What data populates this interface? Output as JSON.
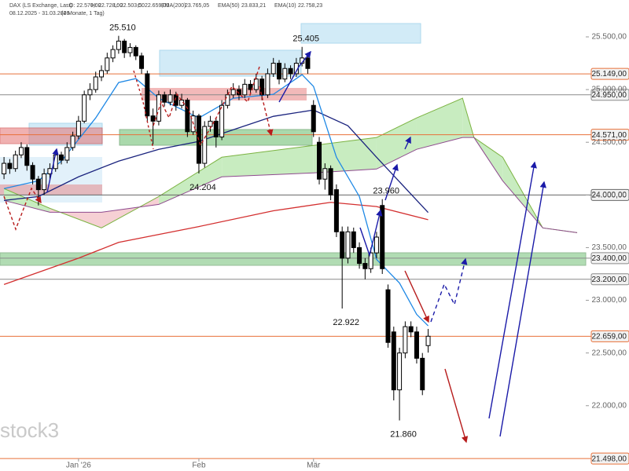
{
  "chart_data": {
    "type": "candlestick",
    "header": {
      "instrument": "DAX (LS Exchange, Last)",
      "open": "O: 22.570,00",
      "high": "H: 22.728,00",
      "low": "L: 22.503,50",
      "close": "C: 22.659,00",
      "range": "08.12.2025 - 31.03.2026",
      "span": "(4 Monate, 1 Tag)"
    },
    "watermark": "stock3",
    "xlim": [
      -0.7,
      101.5
    ],
    "ylim": [
      21380,
      25850
    ],
    "xticks": [
      {
        "value": 13,
        "label": "Jan '26"
      },
      {
        "value": 34,
        "label": "Feb"
      },
      {
        "value": 54,
        "label": "Mär"
      }
    ],
    "yticks": [
      {
        "value": 22000,
        "label": "22.000,00"
      },
      {
        "value": 22500,
        "label": "22.500,00"
      },
      {
        "value": 23000,
        "label": "23.000,00"
      },
      {
        "value": 23500,
        "label": "23.500,00"
      },
      {
        "value": 24000,
        "label": "24.000,00"
      },
      {
        "value": 24500,
        "label": "24.500,00"
      },
      {
        "value": 25000,
        "label": "25.000,00"
      },
      {
        "value": 25500,
        "label": "25.500,00"
      }
    ],
    "up_color": "#ffffff",
    "down_color": "#000000",
    "open": [
      24200,
      24300,
      24250,
      24380,
      24450,
      24280,
      24150,
      24050,
      24200,
      24250,
      24380,
      24330,
      24450,
      24560,
      24700,
      24950,
      25000,
      25120,
      25180,
      25300,
      25380,
      25460,
      25350,
      25400,
      25320,
      25150,
      24750,
      24700,
      24950,
      24880,
      24950,
      24850,
      24900,
      24600,
      24750,
      24300,
      24650,
      24700,
      24550,
      24850,
      24950,
      25000,
      24950,
      25050,
      25000,
      25100,
      24950,
      25150,
      25250,
      25100,
      25200,
      25150,
      25250,
      25300,
      24850,
      24500,
      24150,
      24250,
      24050,
      23650,
      23400,
      23650,
      23500,
      23350,
      23300,
      23450,
      23900,
      23100,
      22700,
      22150,
      22500,
      22750,
      22700,
      22450,
      22570
    ],
    "high": [
      24360,
      24340,
      24420,
      24500,
      24480,
      24310,
      24180,
      24250,
      24300,
      24420,
      24410,
      24500,
      24600,
      24750,
      24990,
      25060,
      25170,
      25230,
      25350,
      25420,
      25510,
      25480,
      25440,
      25420,
      25350,
      25180,
      24820,
      24990,
      24980,
      25000,
      24980,
      24960,
      24920,
      24800,
      24770,
      24700,
      24750,
      24730,
      24900,
      25000,
      25060,
      25040,
      25100,
      25090,
      25150,
      25130,
      25200,
      25300,
      25280,
      25250,
      25230,
      25300,
      25405,
      25330,
      24900,
      24550,
      24300,
      24280,
      24100,
      23700,
      23700,
      23690,
      23550,
      23400,
      23500,
      23650,
      23960,
      23150,
      22750,
      22550,
      22800,
      22800,
      22750,
      22500,
      22728
    ],
    "low": [
      24150,
      24200,
      24220,
      24350,
      24230,
      24100,
      23900,
      24000,
      24150,
      24220,
      24290,
      24300,
      24420,
      24530,
      24680,
      24900,
      24970,
      25080,
      25150,
      25260,
      25340,
      25300,
      25310,
      25280,
      25150,
      24700,
      24480,
      24660,
      24840,
      24850,
      24800,
      24820,
      24550,
      24570,
      24204,
      24260,
      24600,
      24450,
      24520,
      24820,
      24920,
      24900,
      24920,
      24960,
      24970,
      24900,
      24920,
      25120,
      25050,
      25070,
      25100,
      25120,
      25220,
      25150,
      24550,
      24100,
      24050,
      23950,
      23600,
      22922,
      23350,
      23450,
      23300,
      23200,
      23260,
      23400,
      23250,
      22550,
      22050,
      21860,
      22450,
      22650,
      22400,
      22100,
      22503.5
    ],
    "close": [
      24300,
      24250,
      24380,
      24450,
      24280,
      24150,
      24050,
      24200,
      24250,
      24380,
      24330,
      24450,
      24560,
      24700,
      24950,
      25000,
      25120,
      25180,
      25300,
      25380,
      25460,
      25350,
      25400,
      25320,
      25200,
      24750,
      24700,
      24950,
      24880,
      24950,
      24850,
      24900,
      24600,
      24750,
      24300,
      24650,
      24700,
      24550,
      24850,
      24950,
      25000,
      24950,
      25050,
      25000,
      25100,
      24950,
      25150,
      25250,
      25100,
      25200,
      25150,
      25250,
      25300,
      25200,
      24600,
      24150,
      24250,
      24000,
      23650,
      23400,
      23650,
      23500,
      23350,
      23300,
      23450,
      23600,
      23300,
      22600,
      22150,
      22500,
      22750,
      22700,
      22450,
      22150,
      22659
    ],
    "series": [
      {
        "name": "EMA(200)",
        "last_label": "23.765,05",
        "color": "#d32f2f",
        "x": [
          0,
          13,
          20,
          34,
          47,
          57,
          65,
          74
        ],
        "values": [
          23150,
          23400,
          23550,
          23700,
          23850,
          23930,
          23890,
          23765
        ]
      },
      {
        "name": "EMA(50)",
        "last_label": "23.833,21",
        "color": "#1a237e",
        "x": [
          0,
          6,
          13,
          20,
          27,
          34,
          40,
          47,
          54,
          60,
          65,
          74
        ],
        "values": [
          23948,
          23985,
          24172,
          24321,
          24433,
          24508,
          24619,
          24746,
          24806,
          24657,
          24358,
          23833
        ]
      },
      {
        "name": "EMA(10)",
        "last_label": "22.758,23",
        "color": "#1e88e5",
        "x": [
          0,
          6,
          10,
          16,
          20,
          23,
          27,
          34,
          40,
          47,
          52,
          54,
          58,
          62,
          65,
          69,
          72,
          74
        ],
        "values": [
          24060,
          24134,
          24321,
          24731,
          25067,
          25104,
          24918,
          24731,
          24918,
          24955,
          25142,
          25030,
          24358,
          23985,
          23388,
          23164,
          22866,
          22758
        ]
      }
    ],
    "cloud": {
      "x": [
        0,
        8,
        17,
        27,
        38,
        54,
        65,
        72,
        80,
        82,
        87,
        94,
        100
      ],
      "span_a": [
        24060,
        23873,
        23687,
        23985,
        24358,
        24470,
        24545,
        24731,
        24918,
        24545,
        24358,
        23687,
        23642
      ],
      "span_b": [
        23948,
        23836,
        23836,
        23910,
        24172,
        24209,
        24246,
        24433,
        24545,
        24545,
        24134,
        23687,
        23642
      ],
      "up_color": "#c8ecc0",
      "down_color": "#f6d0d4",
      "a_color": "#7cb342",
      "b_color": "#8e4a8e"
    },
    "levels": [
      {
        "value": 25149,
        "label": "25.149,00",
        "color": "#e8703a"
      },
      {
        "value": 24950,
        "label": "24.950,00",
        "color": "#8a8a8a"
      },
      {
        "value": 24571,
        "label": "24.571,00",
        "color": "#e8703a"
      },
      {
        "value": 24000,
        "label": "24.000,00",
        "color": "#666666"
      },
      {
        "value": 23400,
        "label": "23.400,00",
        "color": "#8a8a8a"
      },
      {
        "value": 23200,
        "label": "23.200,00",
        "color": "#8a8a8a"
      },
      {
        "value": 22659,
        "label": "22.659,00",
        "color": "#e8703a"
      },
      {
        "value": 21498,
        "label": "21.498,00",
        "color": "#e8703a"
      }
    ],
    "extremes": [
      {
        "value": 25510,
        "label": "25.510"
      },
      {
        "value": 25405,
        "label": "25.405"
      },
      {
        "value": 24204,
        "label": "24.204"
      },
      {
        "value": 22922,
        "label": "22.922"
      },
      {
        "value": 23960,
        "label": "23.960"
      },
      {
        "value": 21860,
        "label": "21.860"
      }
    ]
  }
}
